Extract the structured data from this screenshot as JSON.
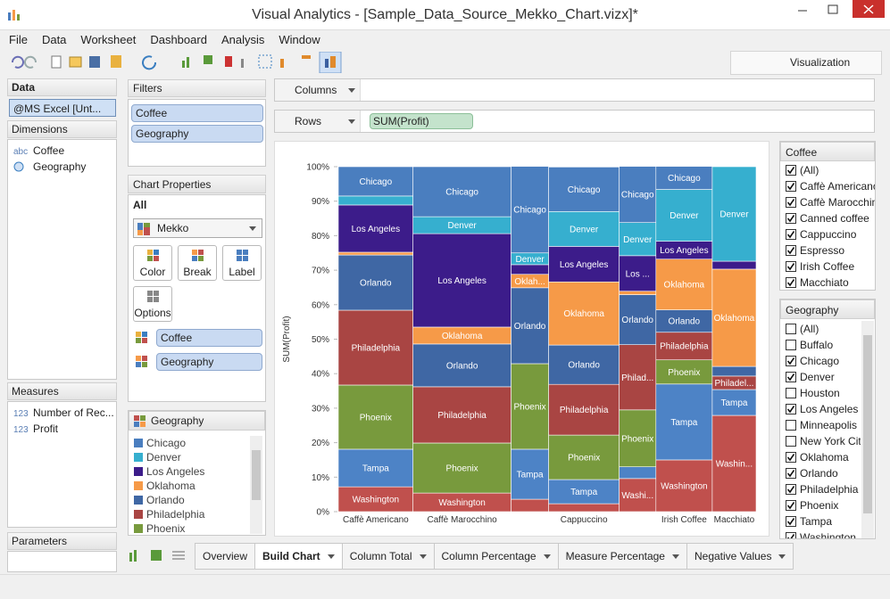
{
  "window": {
    "title": "Visual Analytics - [Sample_Data_Source_Mekko_Chart.vizx]*"
  },
  "menu": [
    "File",
    "Data",
    "Worksheet",
    "Dashboard",
    "Analysis",
    "Window"
  ],
  "toolbar": {
    "visualization_tab": "Visualization"
  },
  "data_pane": {
    "title": "Data",
    "source": "@MS Excel [Unt...",
    "dimensions_title": "Dimensions",
    "dimensions": [
      {
        "icon": "abc",
        "label": "Coffee"
      },
      {
        "label": "Geography"
      }
    ],
    "measures_title": "Measures",
    "measures": [
      {
        "icon": "123",
        "label": "Number of Rec..."
      },
      {
        "icon": "123",
        "label": "Profit"
      }
    ],
    "parameters_title": "Parameters"
  },
  "filters": {
    "title": "Filters",
    "pills": [
      "Coffee",
      "Geography"
    ]
  },
  "chart_properties": {
    "title": "Chart Properties",
    "scope": "All",
    "chart_type": "Mekko",
    "buttons": [
      "Color",
      "Break",
      "Label",
      "Options"
    ],
    "pills": [
      "Coffee",
      "Geography"
    ]
  },
  "legend": {
    "title": "Geography"
  },
  "shelves": {
    "columns": "Columns",
    "rows": "Rows",
    "rows_pill": "SUM(Profit)"
  },
  "coffee_filter": {
    "title": "Coffee",
    "items": [
      {
        "label": "(All)",
        "checked": true
      },
      {
        "label": "Caffè Americano",
        "checked": true
      },
      {
        "label": "Caffè Marocchino",
        "checked": true
      },
      {
        "label": "Canned coffee",
        "checked": true
      },
      {
        "label": "Cappuccino",
        "checked": true
      },
      {
        "label": "Espresso",
        "checked": true
      },
      {
        "label": "Irish Coffee",
        "checked": true
      },
      {
        "label": "Macchiato",
        "checked": true
      }
    ]
  },
  "geography_filter": {
    "title": "Geography",
    "items": [
      {
        "label": "(All)",
        "checked": false
      },
      {
        "label": "Buffalo",
        "checked": false
      },
      {
        "label": "Chicago",
        "checked": true
      },
      {
        "label": "Denver",
        "checked": true
      },
      {
        "label": "Houston",
        "checked": false
      },
      {
        "label": "Los Angeles",
        "checked": true
      },
      {
        "label": "Minneapolis",
        "checked": false
      },
      {
        "label": "New York City",
        "checked": false
      },
      {
        "label": "Oklahoma",
        "checked": true
      },
      {
        "label": "Orlando",
        "checked": true
      },
      {
        "label": "Philadelphia",
        "checked": true
      },
      {
        "label": "Phoenix",
        "checked": true
      },
      {
        "label": "Tampa",
        "checked": true
      },
      {
        "label": "Washington",
        "checked": true
      }
    ]
  },
  "tabs": {
    "items": [
      "Overview",
      "Build Chart",
      "Column Total",
      "Column Percentage",
      "Measure Percentage",
      "Negative Values"
    ],
    "active": 1
  },
  "chart_data": {
    "type": "mekko",
    "y_label": "SUM(Profit)",
    "ylim": [
      0,
      100
    ],
    "yticks": [
      {
        "value": 0,
        "label": "0%"
      },
      {
        "value": 10,
        "label": "10%"
      },
      {
        "value": 20,
        "label": "20%"
      },
      {
        "value": 30,
        "label": "30%"
      },
      {
        "value": 40,
        "label": "40%"
      },
      {
        "value": 50,
        "label": "50%"
      },
      {
        "value": 60,
        "label": "60%"
      },
      {
        "value": 70,
        "label": "70%"
      },
      {
        "value": 80,
        "label": "80%"
      },
      {
        "value": 90,
        "label": "90%"
      },
      {
        "value": 100,
        "label": "100%"
      }
    ],
    "categories": [
      "Caffè Americano",
      "Caffè Marocchino",
      null,
      "Cappuccino",
      null,
      "Irish Coffee",
      "Macchiato"
    ],
    "column_share": [
      17.9,
      23.5,
      9.0,
      16.9,
      8.8,
      13.5,
      10.5
    ],
    "series": [
      {
        "name": "Chicago",
        "color": "#4a7ebf",
        "values": [
          8.5,
          14.5,
          25.1,
          12.9,
          16.3,
          6.7,
          null
        ],
        "segment_labels": [
          "Chicago",
          "Chicago",
          "Chicago",
          "Chicago",
          "Chicago",
          "Chicago",
          null
        ]
      },
      {
        "name": "Denver",
        "color": "#36afcf",
        "values": [
          2.6,
          4.9,
          3.4,
          10.1,
          9.6,
          15.0,
          27.4
        ],
        "segment_labels": [
          null,
          "Denver",
          "Denver",
          "Denver",
          "Denver",
          "Denver",
          "Denver"
        ]
      },
      {
        "name": "Los Angeles",
        "color": "#3c1c8a",
        "values": [
          13.7,
          27.1,
          2.8,
          10.3,
          10.3,
          5.2,
          2.3
        ],
        "segment_labels": [
          "Los Angeles",
          "Los Angeles",
          null,
          "Los Angeles",
          "Los ...",
          "Los Angeles",
          null
        ]
      },
      {
        "name": "Oklahoma",
        "color": "#f69a48",
        "values": [
          0.8,
          4.9,
          3.9,
          18.3,
          1.0,
          14.7,
          28.2
        ],
        "segment_labels": [
          null,
          "Oklahoma",
          "Oklah...",
          "Oklahoma",
          null,
          "Oklahoma",
          "Oklahoma"
        ]
      },
      {
        "name": "Orlando",
        "color": "#3f67a4",
        "values": [
          16.0,
          12.4,
          22.0,
          11.4,
          14.5,
          6.5,
          2.8
        ],
        "segment_labels": [
          "Orlando",
          "Orlando",
          "Orlando",
          "Orlando",
          "Orlando",
          "Orlando",
          null
        ]
      },
      {
        "name": "Philadelphia",
        "color": "#a94543",
        "values": [
          21.7,
          16.3,
          null,
          14.7,
          18.9,
          8.0,
          3.9
        ],
        "segment_labels": [
          "Philadelphia",
          "Philadelphia",
          null,
          "Philadelphia",
          "Philad...",
          "Philadelphia",
          "Philadel..."
        ]
      },
      {
        "name": "Phoenix",
        "color": "#789a3d",
        "values": [
          18.6,
          14.5,
          24.8,
          12.9,
          16.5,
          7.0,
          null
        ],
        "segment_labels": [
          "Phoenix",
          "Phoenix",
          "Phoenix",
          "Phoenix",
          "Phoenix",
          "Phoenix",
          null
        ]
      },
      {
        "name": "Tampa",
        "color": "#4d83c6",
        "values": [
          10.9,
          null,
          14.5,
          7.0,
          3.4,
          22.0,
          7.5
        ],
        "segment_labels": [
          "Tampa",
          null,
          "Tampa",
          "Tampa",
          null,
          "Tampa",
          "Tampa"
        ]
      },
      {
        "name": "Washington",
        "color": "#c0504d",
        "values": [
          7.2,
          5.4,
          3.6,
          2.3,
          9.6,
          15.0,
          27.9
        ],
        "segment_labels": [
          "Washington",
          "Washington",
          null,
          null,
          "Washi...",
          "Washington",
          "Washin..."
        ]
      }
    ]
  }
}
